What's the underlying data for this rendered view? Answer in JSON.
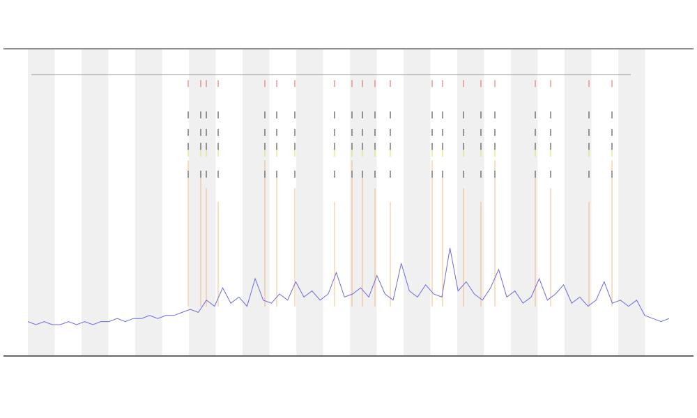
{
  "chart_data": {
    "type": "line",
    "x": [
      0,
      1,
      2,
      3,
      4,
      5,
      6,
      7,
      8,
      9,
      10,
      11,
      12,
      13,
      14,
      15,
      16,
      17,
      18,
      19,
      20,
      21,
      22,
      23,
      24,
      25,
      26,
      27,
      28,
      29,
      30,
      31,
      32,
      33,
      34,
      35,
      36,
      37,
      38,
      39,
      40,
      41,
      42,
      43,
      44,
      45,
      46,
      47,
      48,
      49,
      50,
      51,
      52,
      53,
      54,
      55,
      56,
      57,
      58,
      59,
      60,
      61,
      62,
      63,
      64,
      65,
      66,
      67,
      68,
      69,
      70,
      71,
      72,
      73,
      74,
      75,
      76,
      77,
      78,
      79
    ],
    "xlim": [
      0,
      79
    ],
    "ylim": [
      0,
      100
    ],
    "series": [
      {
        "color": "#6a6ae0",
        "values": [
          11,
          10,
          11,
          10,
          10,
          11,
          10,
          11,
          10,
          11,
          11,
          12,
          11,
          12,
          12,
          13,
          12,
          13,
          13,
          14,
          15,
          14,
          18,
          16,
          22,
          17,
          19,
          16,
          25,
          18,
          17,
          20,
          18,
          24,
          19,
          21,
          18,
          20,
          27,
          19,
          20,
          22,
          19,
          26,
          20,
          18,
          30,
          21,
          19,
          23,
          20,
          19,
          35,
          21,
          24,
          20,
          18,
          22,
          28,
          19,
          21,
          17,
          19,
          25,
          18,
          20,
          23,
          17,
          19,
          16,
          18,
          24,
          17,
          18,
          16,
          18,
          13,
          12,
          11,
          12
        ]
      }
    ]
  }
}
